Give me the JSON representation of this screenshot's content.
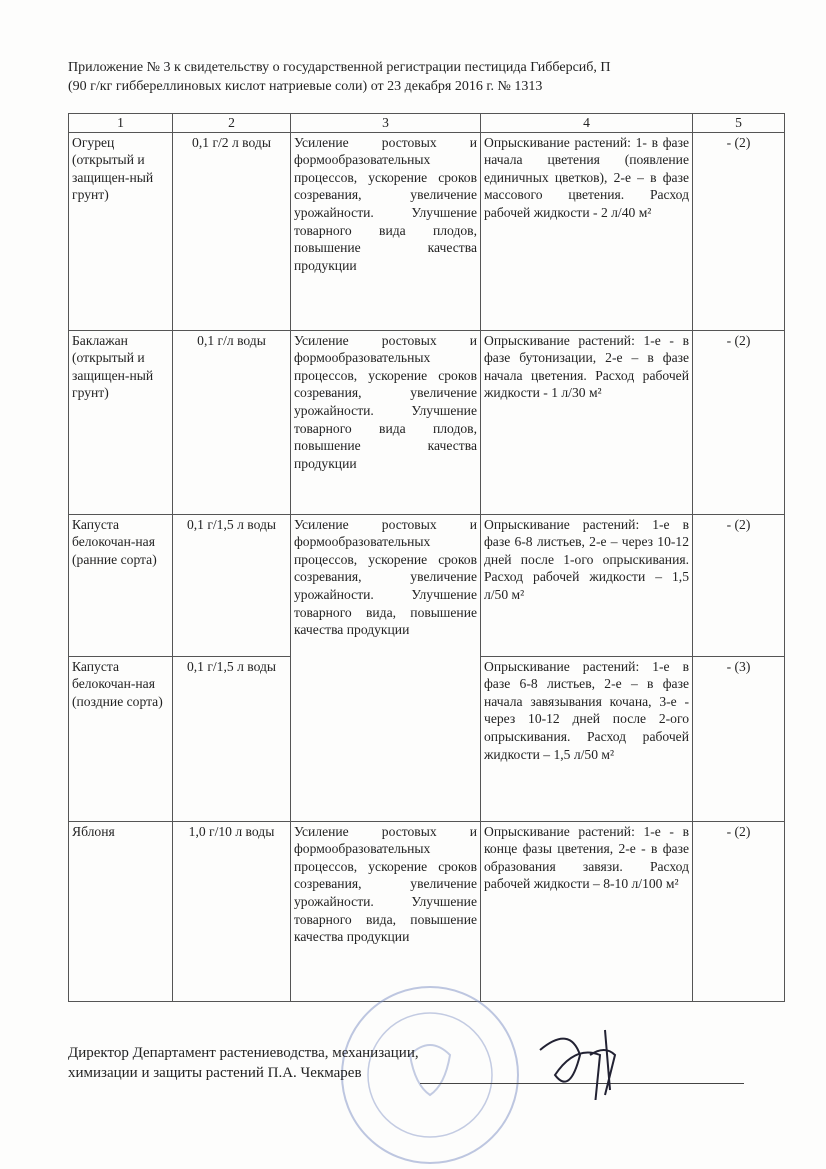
{
  "header": {
    "line1": "Приложение № 3 к свидетельству о государственной регистрации пестицида  Гибберсиб, П",
    "line2": "(90 г/кг гиббереллиновых кислот натриевые соли)   от  23 декабря 2016 г. № 1313"
  },
  "table": {
    "columns": [
      "1",
      "2",
      "3",
      "4",
      "5"
    ],
    "rows": [
      {
        "crop": "Огурец (открытый и защищен-ный грунт)",
        "rate": "0,1 г/2 л воды",
        "purpose": "Усиление ростовых и формообразовательных процессов, ускорение сроков созревания, увеличение урожайности. Улучшение товарного вида плодов, повышение качества продукции",
        "method": "Опрыскивание растений: 1-  в фазе начала цветения (появление единичных цветков), 2-е – в фазе массового цветения. Расход рабочей жидкости - 2 л/40 м²",
        "term": "- (2)"
      },
      {
        "crop": "Баклажан (открытый и защищен-ный грунт)",
        "rate": "0,1 г/л воды",
        "purpose": "Усиление ростовых и формообразовательных процессов, ускорение сроков созревания, увеличение урожайности. Улучшение товарного вида плодов, повышение качества продукции",
        "method": "Опрыскивание растений: 1-е - в фазе бутонизации, 2-е – в фазе начала цветения. Расход рабочей жидкости - 1 л/30 м²",
        "term": "- (2)"
      },
      {
        "crop": "Капуста белокочан-ная (ранние сорта)",
        "rate": "0,1 г/1,5 л воды",
        "purpose": "Усиление ростовых и формообразовательных процессов, ускорение сроков созревания, увеличение урожайности. Улучшение товарного вида, повышение качества продукции",
        "method": "Опрыскивание растений: 1-е  в фазе 6-8 листьев, 2-е – через 10-12 дней после 1-ого опрыскивания. Расход рабочей жидкости – 1,5 л/50 м²",
        "term": "- (2)"
      },
      {
        "crop": "Капуста белокочан-ная (поздние сорта)",
        "rate": "0,1 г/1,5 л воды",
        "method": "Опрыскивание растений: 1-е  в фазе 6-8 листьев, 2-е – в фазе начала завязывания кочана, 3-е - через 10-12 дней после 2-ого опрыскивания. Расход рабочей жидкости – 1,5 л/50 м²",
        "term": "- (3)"
      },
      {
        "crop": "Яблоня",
        "rate": "1,0 г/10 л воды",
        "purpose": "Усиление ростовых и формообразовательных процессов, ускорение сроков созревания, увеличение урожайности. Улучшение товарного вида, повышение качества продукции",
        "method": "Опрыскивание растений: 1-е - в конце фазы цветения, 2-е - в фазе образования завязи. Расход рабочей жидкости – 8-10 л/100 м²",
        "term": "- (2)"
      }
    ]
  },
  "footer": {
    "line1": "Директор Департамент растениеводства, механизации,",
    "line2": "химизации и защиты растений  П.А. Чекмарев"
  },
  "stamp": {
    "text": "МИНИСТЕРСТВО СЕЛЬСКОГО ХОЗЯЙСТВА РОССИЙСКОЙ ФЕДЕРАЦИИ ОГРН",
    "color": "#5a6fb0"
  }
}
